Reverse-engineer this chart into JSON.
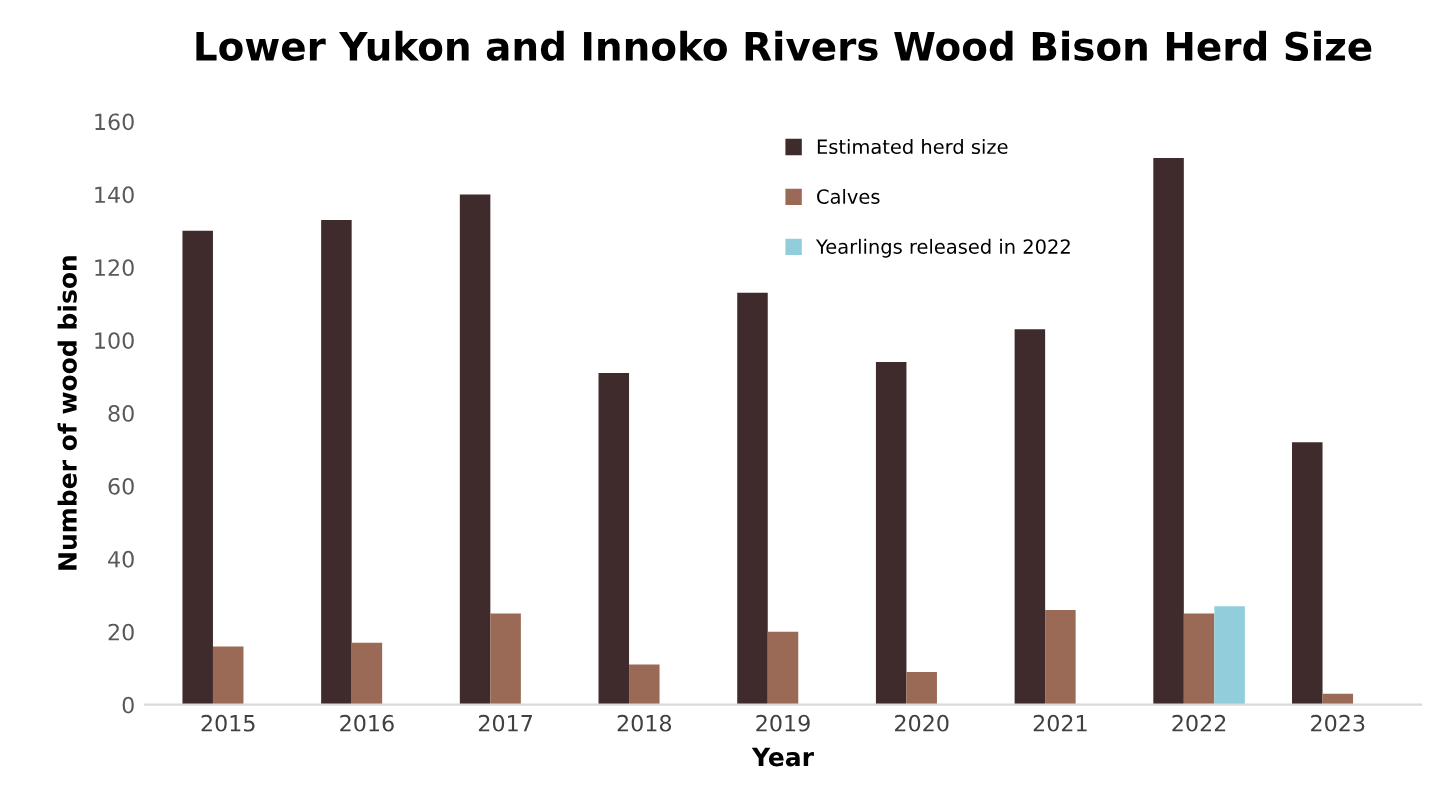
{
  "chart_data": {
    "type": "bar",
    "title": "Lower Yukon and Innoko Rivers Wood Bison Herd Size",
    "xlabel": "Year",
    "ylabel": "Number of wood bison",
    "categories": [
      "2015",
      "2016",
      "2017",
      "2018",
      "2019",
      "2020",
      "2021",
      "2022",
      "2023"
    ],
    "series": [
      {
        "name": "Estimated herd size",
        "color": "#3f2a2c",
        "values": [
          130,
          133,
          140,
          91,
          113,
          94,
          103,
          150,
          72
        ]
      },
      {
        "name": "Calves",
        "color": "#9a6a56",
        "values": [
          16,
          17,
          25,
          11,
          20,
          9,
          26,
          25,
          3
        ]
      },
      {
        "name": "Yearlings released in 2022",
        "color": "#92cddc",
        "values": [
          null,
          null,
          null,
          null,
          null,
          null,
          null,
          27,
          null
        ]
      }
    ],
    "ylim": [
      0,
      160
    ],
    "yticks": [
      0,
      20,
      40,
      60,
      80,
      100,
      120,
      140,
      160
    ],
    "grid": false,
    "legend": "top right"
  }
}
